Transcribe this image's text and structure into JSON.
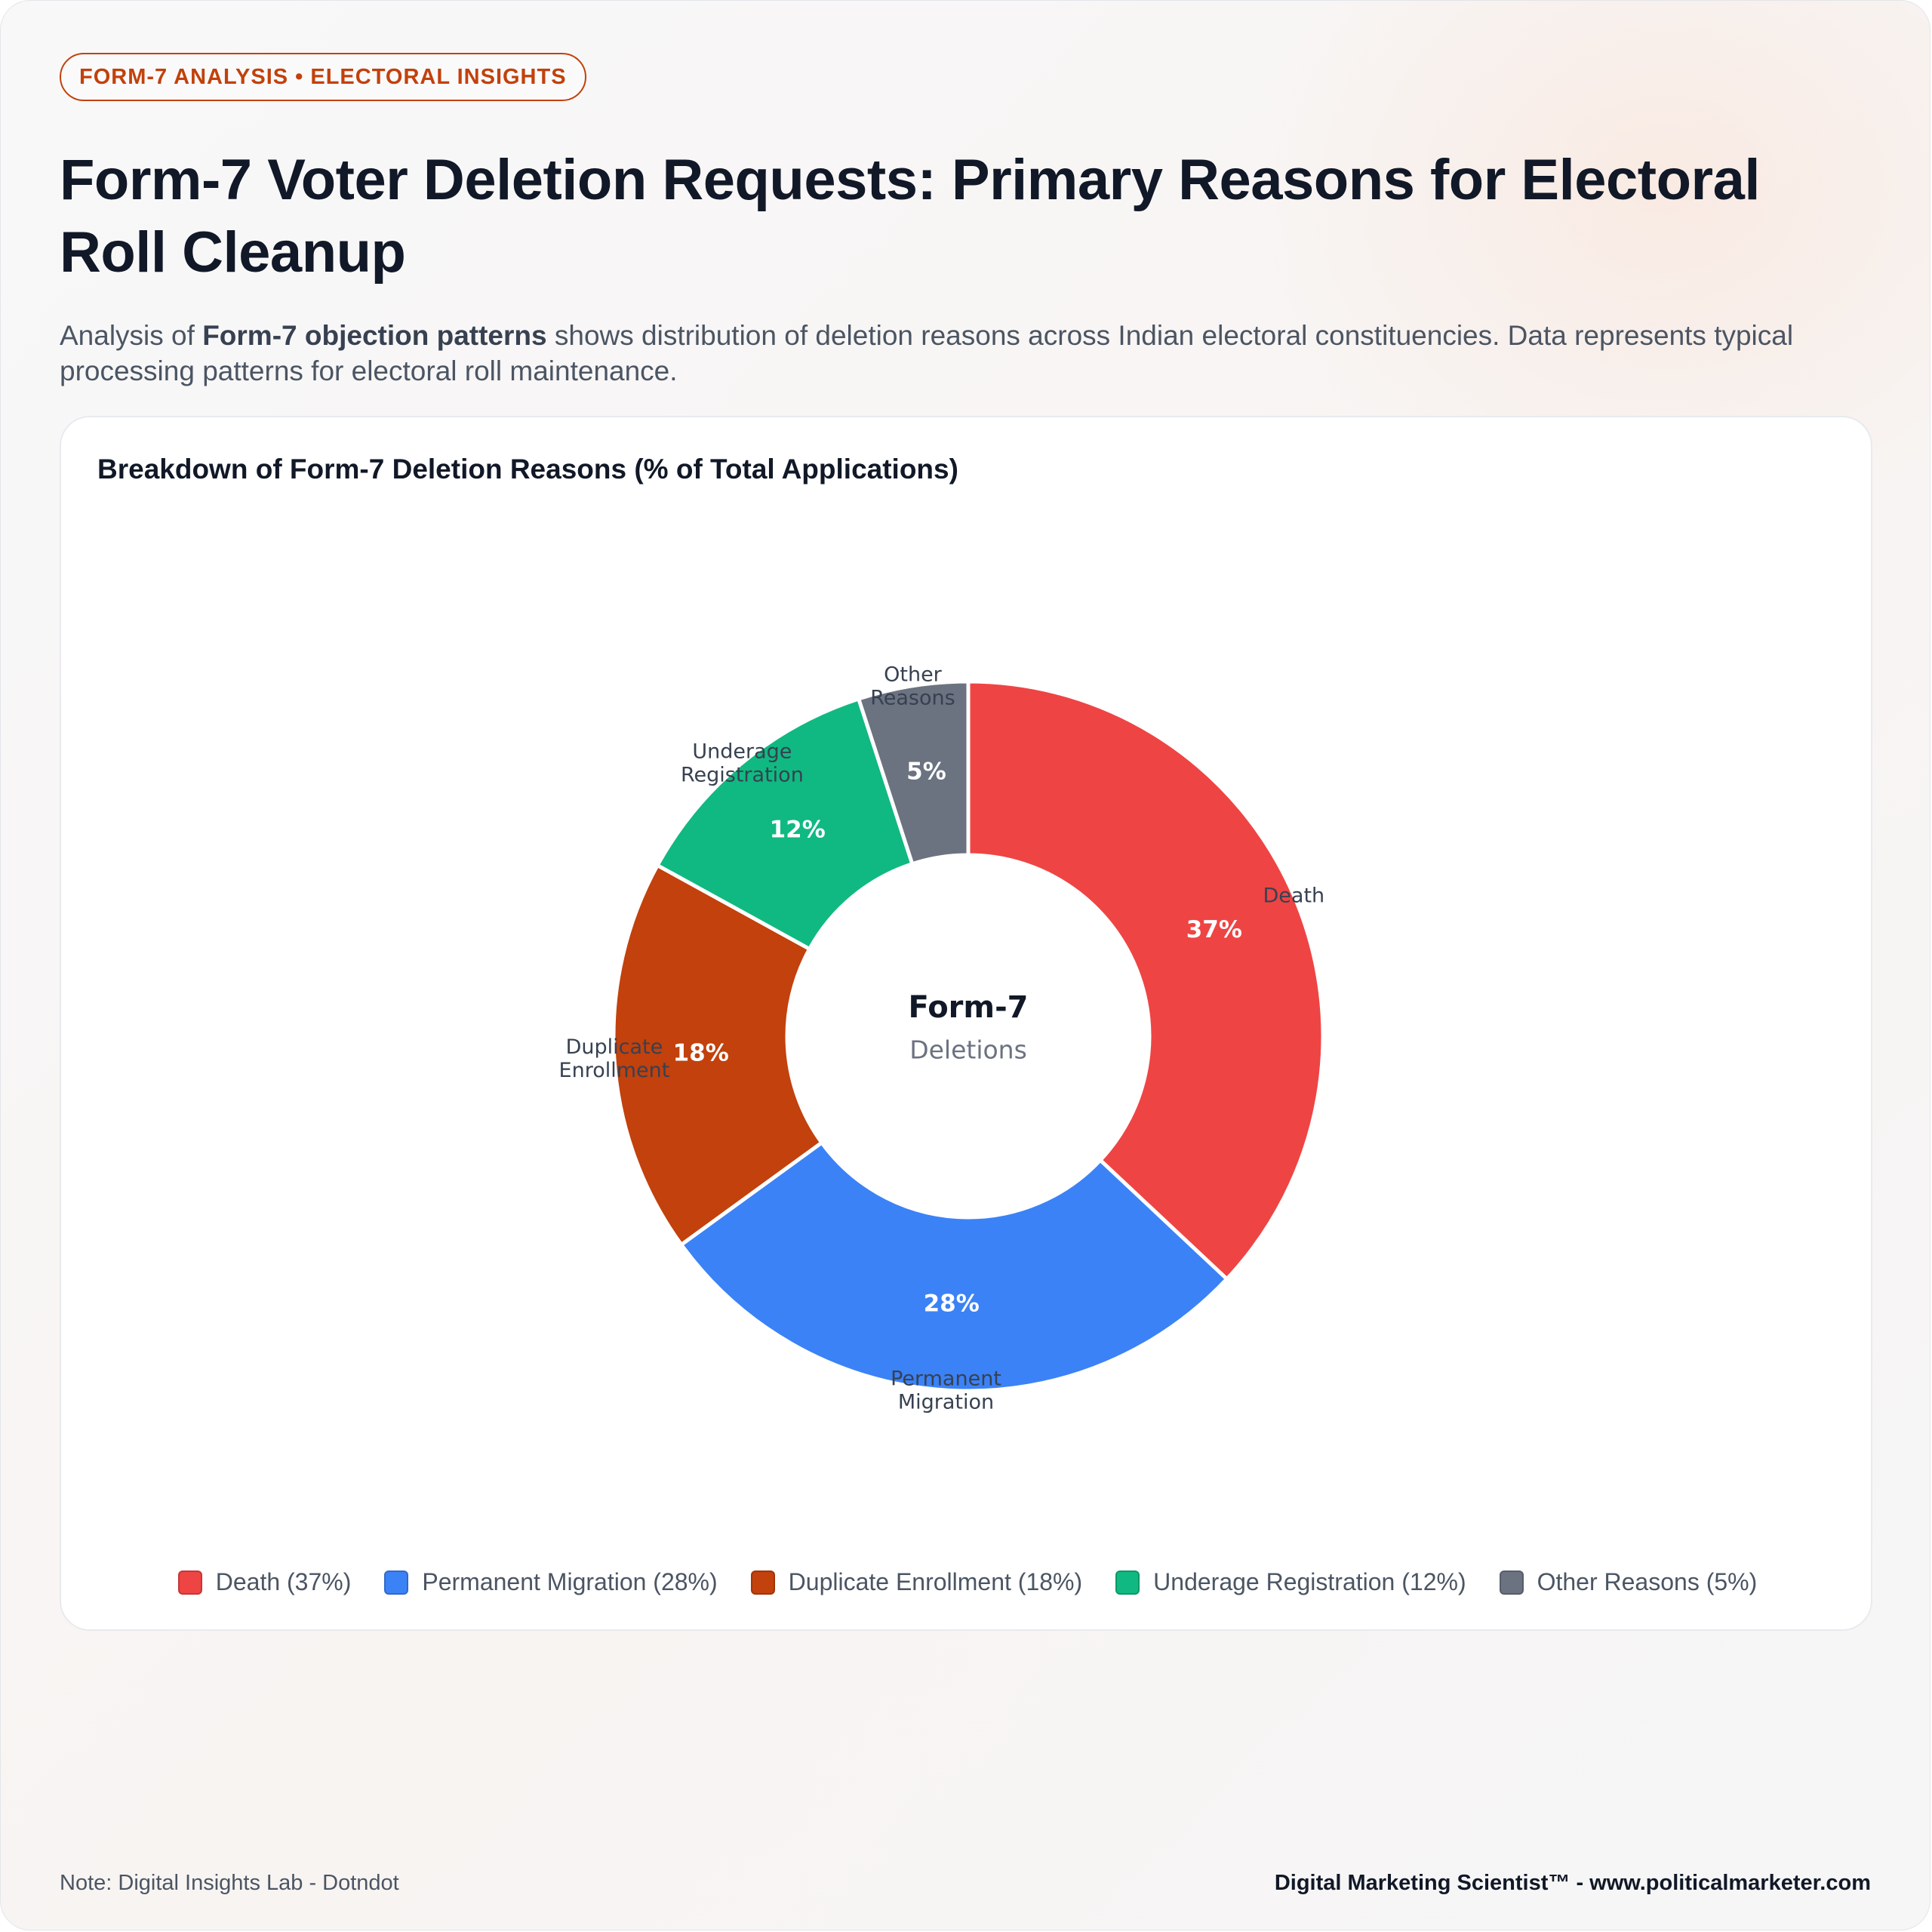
{
  "badge": "FORM-7 ANALYSIS • ELECTORAL INSIGHTS",
  "title": "Form-7 Voter Deletion Requests: Primary Reasons for Electoral Roll Cleanup",
  "subtitle": {
    "prefix": "Analysis of ",
    "bold": "Form-7 objection patterns",
    "suffix": " shows distribution of deletion reasons across Indian electoral constituencies. Data represents typical processing patterns for electoral roll maintenance."
  },
  "chart_data": {
    "type": "pie",
    "variant": "donut",
    "title": "Breakdown of Form-7 Deletion Reasons (% of Total Applications)",
    "center_label": "Form-7",
    "center_sublabel": "Deletions",
    "unit": "%",
    "legend_position": "bottom",
    "slices": [
      {
        "label": "Death",
        "label_lines": [
          "Death"
        ],
        "value": 37,
        "value_label": "37%",
        "color": "#ef4444",
        "legend": "Death (37%)"
      },
      {
        "label": "Permanent Migration",
        "label_lines": [
          "Permanent",
          "Migration"
        ],
        "value": 28,
        "value_label": "28%",
        "color": "#3b82f6",
        "legend": "Permanent Migration (28%)"
      },
      {
        "label": "Duplicate Enrollment",
        "label_lines": [
          "Duplicate",
          "Enrollment"
        ],
        "value": 18,
        "value_label": "18%",
        "color": "#c2410c",
        "legend": "Duplicate Enrollment (18%)"
      },
      {
        "label": "Underage Registration",
        "label_lines": [
          "Underage",
          "Registration"
        ],
        "value": 12,
        "value_label": "12%",
        "color": "#10b981",
        "legend": "Underage Registration (12%)"
      },
      {
        "label": "Other Reasons",
        "label_lines": [
          "Other",
          "Reasons"
        ],
        "value": 5,
        "value_label": "5%",
        "color": "#6b7280",
        "legend": "Other Reasons (5%)"
      }
    ]
  },
  "footer": {
    "note": "Note: Digital Insights Lab - Dotndot",
    "brand": "Digital Marketing Scientist™ - www.politicalmarketer.com"
  }
}
